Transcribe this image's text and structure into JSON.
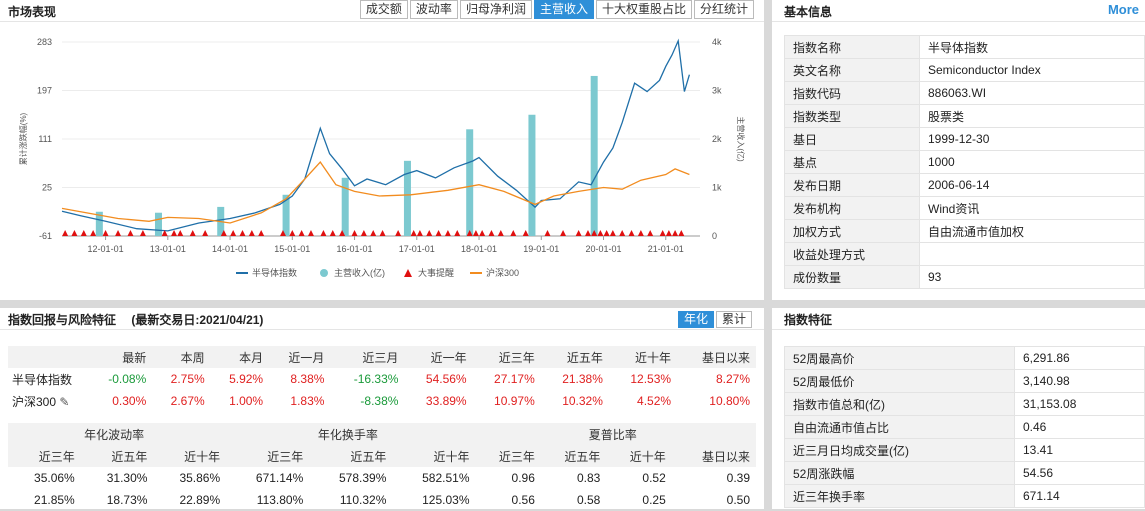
{
  "market": {
    "title": "市场表现",
    "tabs": [
      "成交额",
      "波动率",
      "归母净利润",
      "主营收入",
      "十大权重股占比",
      "分红统计"
    ],
    "active_tab": 3,
    "legend": [
      "半导体指数",
      "主营收入(亿)",
      "大事提醒",
      "沪深300"
    ],
    "y_left_label": "累计涨跌幅(%)",
    "y_right_label": "主营收入(亿)"
  },
  "chart_data": {
    "type": "line",
    "title": "",
    "xlabel": "",
    "x_ticks": [
      "12-01-01",
      "13-01-01",
      "14-01-01",
      "15-01-01",
      "16-01-01",
      "17-01-01",
      "18-01-01",
      "19-01-01",
      "20-01-01",
      "21-01-01"
    ],
    "y_left_ticks": [
      "283",
      "197",
      "111",
      "25",
      "-61"
    ],
    "y_right_ticks": [
      "4k",
      "3k",
      "2k",
      "1k",
      "0"
    ],
    "ylim_left": [
      -61,
      283
    ],
    "ylim_right": [
      0,
      4000
    ],
    "xlim": [
      2011.3,
      2021.55
    ],
    "series": [
      {
        "name": "半导体指数",
        "color": "#1f6fa8",
        "x": [
          2011.3,
          2011.6,
          2012.0,
          2012.5,
          2013.0,
          2013.5,
          2014.0,
          2014.4,
          2014.8,
          2015.0,
          2015.2,
          2015.45,
          2015.6,
          2015.8,
          2016.0,
          2016.2,
          2016.5,
          2016.8,
          2017.0,
          2017.3,
          2017.6,
          2017.9,
          2018.0,
          2018.3,
          2018.6,
          2018.9,
          2019.0,
          2019.3,
          2019.6,
          2019.8,
          2020.0,
          2020.15,
          2020.3,
          2020.5,
          2020.7,
          2020.9,
          2021.0,
          2021.1,
          2021.2,
          2021.3,
          2021.38
        ],
        "values": [
          -17,
          -25,
          -35,
          -48,
          -52,
          -38,
          -30,
          -20,
          -5,
          10,
          40,
          130,
          85,
          58,
          28,
          40,
          30,
          48,
          55,
          42,
          60,
          72,
          78,
          45,
          20,
          -10,
          2,
          5,
          35,
          30,
          70,
          95,
          140,
          210,
          195,
          215,
          240,
          260,
          285,
          195,
          225
        ]
      },
      {
        "name": "沪深300",
        "color": "#f28c1f",
        "x": [
          2011.3,
          2011.8,
          2012.2,
          2012.7,
          2013.0,
          2013.5,
          2014.0,
          2014.5,
          2014.9,
          2015.2,
          2015.45,
          2015.7,
          2016.0,
          2016.4,
          2016.9,
          2017.5,
          2018.0,
          2018.4,
          2018.9,
          2019.2,
          2019.6,
          2020.0,
          2020.3,
          2020.6,
          2021.0,
          2021.15,
          2021.38
        ],
        "values": [
          -12,
          -22,
          -30,
          -35,
          -28,
          -30,
          -38,
          -20,
          5,
          40,
          70,
          30,
          18,
          10,
          12,
          20,
          30,
          18,
          -5,
          10,
          18,
          25,
          22,
          38,
          48,
          58,
          48
        ]
      }
    ],
    "bars": {
      "name": "主营收入(亿)",
      "color": "#7cc9d0",
      "x": [
        2011.9,
        2012.85,
        2013.85,
        2014.9,
        2015.85,
        2016.85,
        2017.85,
        2018.85,
        2019.85
      ],
      "values": [
        500,
        480,
        600,
        850,
        1200,
        1550,
        2200,
        2500,
        3300
      ]
    },
    "events": {
      "name": "大事提醒",
      "color": "#e01010",
      "x": [
        2011.35,
        2011.5,
        2011.65,
        2011.8,
        2012.0,
        2012.2,
        2012.4,
        2012.6,
        2012.95,
        2013.1,
        2013.2,
        2013.4,
        2013.6,
        2013.9,
        2014.05,
        2014.2,
        2014.35,
        2014.5,
        2014.85,
        2015.0,
        2015.15,
        2015.3,
        2015.5,
        2015.65,
        2015.8,
        2016.0,
        2016.15,
        2016.3,
        2016.45,
        2016.7,
        2016.95,
        2017.05,
        2017.2,
        2017.35,
        2017.5,
        2017.65,
        2017.85,
        2017.95,
        2018.05,
        2018.2,
        2018.35,
        2018.55,
        2018.75,
        2019.1,
        2019.35,
        2019.6,
        2019.75,
        2019.85,
        2019.95,
        2020.05,
        2020.15,
        2020.3,
        2020.45,
        2020.6,
        2020.75,
        2020.95,
        2021.05,
        2021.15,
        2021.25
      ]
    }
  },
  "basic": {
    "title": "基本信息",
    "more": "More",
    "rows": [
      {
        "k": "指数名称",
        "v": "半导体指数"
      },
      {
        "k": "英文名称",
        "v": "Semiconductor Index"
      },
      {
        "k": "指数代码",
        "v": "886063.WI"
      },
      {
        "k": "指数类型",
        "v": "股票类"
      },
      {
        "k": "基日",
        "v": "1999-12-30"
      },
      {
        "k": "基点",
        "v": "1000"
      },
      {
        "k": "发布日期",
        "v": "2006-06-14"
      },
      {
        "k": "发布机构",
        "v": "Wind资讯"
      },
      {
        "k": "加权方式",
        "v": "自由流通市值加权"
      },
      {
        "k": "收益处理方式",
        "v": ""
      },
      {
        "k": "成份数量",
        "v": "93"
      }
    ]
  },
  "returns": {
    "title": "指数回报与风险特征",
    "date_label": "(最新交易日:2021/04/21)",
    "toggle": [
      "年化",
      "累计"
    ],
    "headers": [
      "",
      "最新",
      "本周",
      "本月",
      "近一月",
      "近三月",
      "近一年",
      "近三年",
      "近五年",
      "近十年",
      "基日以来"
    ],
    "rows": [
      {
        "name": "半导体指数",
        "vals": [
          "-0.08%",
          "2.75%",
          "5.92%",
          "8.38%",
          "-16.33%",
          "54.56%",
          "27.17%",
          "21.38%",
          "12.53%",
          "8.27%"
        ]
      },
      {
        "name": "沪深300",
        "vals": [
          "0.30%",
          "2.67%",
          "1.00%",
          "1.83%",
          "-8.38%",
          "33.89%",
          "10.97%",
          "10.32%",
          "4.52%",
          "10.80%"
        ]
      }
    ],
    "group_headers": [
      "年化波动率",
      "年化换手率",
      "夏普比率"
    ],
    "sub_headers": [
      "近三年",
      "近五年",
      "近十年",
      "近三年",
      "近五年",
      "近十年",
      "近三年",
      "近五年",
      "近十年",
      "基日以来"
    ],
    "risk_rows": [
      [
        "35.06%",
        "31.30%",
        "35.86%",
        "671.14%",
        "578.39%",
        "582.51%",
        "0.96",
        "0.83",
        "0.52",
        "0.39"
      ],
      [
        "21.85%",
        "18.73%",
        "22.89%",
        "113.80%",
        "110.32%",
        "125.03%",
        "0.56",
        "0.58",
        "0.25",
        "0.50"
      ]
    ]
  },
  "features": {
    "title": "指数特征",
    "rows": [
      {
        "k": "52周最高价",
        "v": "6,291.86"
      },
      {
        "k": "52周最低价",
        "v": "3,140.98"
      },
      {
        "k": "指数市值总和(亿)",
        "v": "31,153.08"
      },
      {
        "k": "自由流通市值占比",
        "v": "0.46"
      },
      {
        "k": "近三月日均成交量(亿)",
        "v": "13.41"
      },
      {
        "k": "52周涨跌幅",
        "v": "54.56"
      },
      {
        "k": "近三年换手率",
        "v": "671.14"
      }
    ]
  },
  "colors": {
    "accent": "#2f8fd8",
    "up": "#e02020",
    "down": "#1a9a3a"
  }
}
